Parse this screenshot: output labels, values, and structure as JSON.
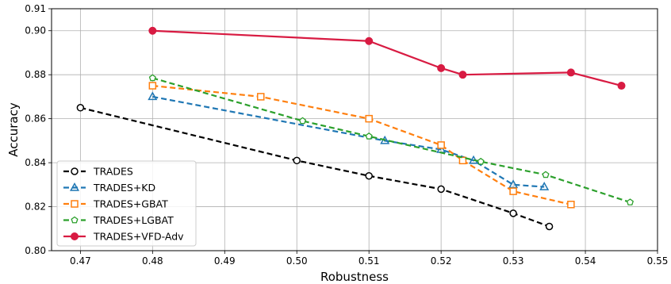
{
  "chart_data": {
    "type": "line",
    "xlabel": "Robustness",
    "ylabel": "Accuracy",
    "xlim": [
      0.466,
      0.55
    ],
    "ylim": [
      0.8,
      0.91
    ],
    "xticks": [
      "0.47",
      "0.48",
      "0.49",
      "0.50",
      "0.51",
      "0.52",
      "0.53",
      "0.54",
      "0.55"
    ],
    "yticks": [
      "0.80",
      "0.82",
      "0.84",
      "0.86",
      "0.88",
      "0.90",
      "0.91"
    ],
    "grid": true,
    "legend_position": "lower-left",
    "series": [
      {
        "name": "TRADES",
        "color": "#000000",
        "linestyle": "dashed",
        "marker": "circle",
        "x": [
          0.47,
          0.5,
          0.51,
          0.52,
          0.53,
          0.535
        ],
        "y": [
          0.865,
          0.841,
          0.834,
          0.828,
          0.817,
          0.811
        ]
      },
      {
        "name": "TRADES+KD",
        "color": "#1f77b4",
        "linestyle": "dashed",
        "marker": "triangle",
        "x": [
          0.48,
          0.5122,
          0.52,
          0.5245,
          0.53,
          0.5343
        ],
        "y": [
          0.87,
          0.85,
          0.846,
          0.841,
          0.83,
          0.829
        ]
      },
      {
        "name": "TRADES+GBAT",
        "color": "#ff7f0e",
        "linestyle": "dashed",
        "marker": "square",
        "x": [
          0.48,
          0.495,
          0.51,
          0.52,
          0.523,
          0.53,
          0.538
        ],
        "y": [
          0.875,
          0.87,
          0.86,
          0.848,
          0.841,
          0.827,
          0.821
        ]
      },
      {
        "name": "TRADES+LGBAT",
        "color": "#2ca02c",
        "linestyle": "dashed",
        "marker": "pentagon",
        "x": [
          0.48,
          0.5008,
          0.51,
          0.5255,
          0.5345,
          0.5462
        ],
        "y": [
          0.8785,
          0.859,
          0.852,
          0.8405,
          0.8345,
          0.822
        ]
      },
      {
        "name": "TRADES+VFD-Adv",
        "color": "#d81b42",
        "linestyle": "solid",
        "marker": "filled-circle",
        "x": [
          0.48,
          0.51,
          0.52,
          0.523,
          0.538,
          0.545
        ],
        "y": [
          0.9,
          0.8953,
          0.883,
          0.88,
          0.881,
          0.875
        ]
      }
    ]
  }
}
